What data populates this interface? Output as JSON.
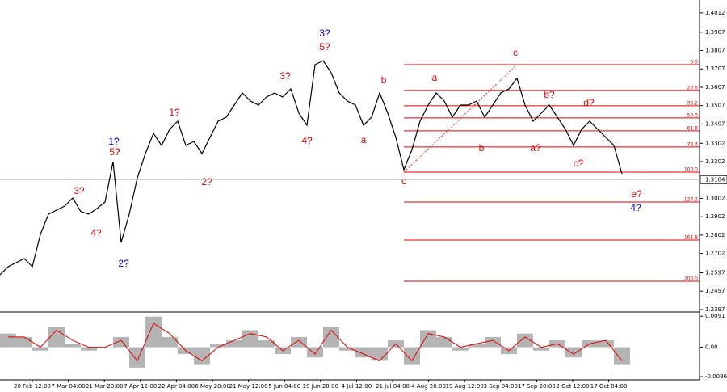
{
  "chart_data": {
    "type": "line",
    "price": {
      "color": "#000000",
      "values": [
        1.2586,
        1.263,
        1.2652,
        1.2674,
        1.263,
        1.2806,
        1.2916,
        1.2938,
        1.296,
        1.3004,
        1.293,
        1.2916,
        1.2947,
        1.2982,
        1.3202,
        1.2762,
        1.2916,
        1.3114,
        1.3246,
        1.3356,
        1.329,
        1.3378,
        1.3422,
        1.329,
        1.3312,
        1.3246,
        1.3334,
        1.3422,
        1.3444,
        1.351,
        1.3576,
        1.3532,
        1.351,
        1.3554,
        1.3576,
        1.3554,
        1.3598,
        1.3466,
        1.34,
        1.373,
        1.3752,
        1.3686,
        1.3576,
        1.3532,
        1.351,
        1.34,
        1.3444,
        1.3576,
        1.3466,
        1.3334,
        1.3158,
        1.3268,
        1.3422,
        1.351,
        1.3576,
        1.3532,
        1.3444,
        1.351,
        1.351,
        1.3532,
        1.3444,
        1.351,
        1.3576,
        1.3598,
        1.3656,
        1.351,
        1.3422,
        1.3466,
        1.351,
        1.3444,
        1.3378,
        1.329,
        1.3378,
        1.3422,
        1.3378,
        1.3334,
        1.329,
        1.3136
      ]
    },
    "ylim": [
      1.2388,
      1.4082
    ],
    "yticks": [
      1.4012,
      1.3907,
      1.3807,
      1.3707,
      1.3607,
      1.3507,
      1.3407,
      1.3302,
      1.3202,
      1.3002,
      1.2902,
      1.2802,
      1.2702,
      1.2597,
      1.2497,
      1.2397
    ],
    "current_price": 1.3104,
    "categories": [
      "20 Feb 12:00",
      "7 Mar 04:00",
      "21 Mar 20:00",
      "7 Apr 12:00",
      "22 Apr 04:00",
      "6 May 20:00",
      "21 May 12:00",
      "5 Jun 04:00",
      "19 Jun 20:00",
      "4 Jul 12:00",
      "21 Jul 04:00",
      "4 Aug 20:00",
      "19 Aug 12:00",
      "3 Sep 04:00",
      "17 Sep 20:00",
      "2 Oct 12:00",
      "17 Oct 04:00"
    ],
    "fib_color": "#e00000",
    "fib_levels": [
      {
        "label": "0.0",
        "price": 1.373
      },
      {
        "label": "23.6",
        "price": 1.359
      },
      {
        "label": "38.2",
        "price": 1.3506
      },
      {
        "label": "50.0",
        "price": 1.344
      },
      {
        "label": "61.8",
        "price": 1.337
      },
      {
        "label": "76.4",
        "price": 1.3282
      },
      {
        "label": "100.0",
        "price": 1.3145
      },
      {
        "label": "127.2",
        "price": 1.2982
      },
      {
        "label": "161.8",
        "price": 1.2775
      },
      {
        "label": "200.0",
        "price": 1.2551
      }
    ],
    "waves": [
      {
        "text": "3?",
        "color": "#e00000"
      },
      {
        "text": "4?",
        "color": "#e00000"
      },
      {
        "text": "1?",
        "color": "#0000e0"
      },
      {
        "text": "5?",
        "color": "#e00000"
      },
      {
        "text": "2?",
        "color": "#0000e0"
      },
      {
        "text": "1?",
        "color": "#e00000"
      },
      {
        "text": "2?",
        "color": "#e00000"
      },
      {
        "text": "3?",
        "color": "#e00000"
      },
      {
        "text": "4?",
        "color": "#e00000"
      },
      {
        "text": "3?",
        "color": "#0000e0"
      },
      {
        "text": "5?",
        "color": "#e00000"
      },
      {
        "text": "b",
        "color": "#e00000"
      },
      {
        "text": "a",
        "color": "#e00000"
      },
      {
        "text": "c",
        "color": "#e00000"
      },
      {
        "text": "a",
        "color": "#e00000"
      },
      {
        "text": "b",
        "color": "#e00000"
      },
      {
        "text": "c",
        "color": "#e00000"
      },
      {
        "text": "b?",
        "color": "#e00000"
      },
      {
        "text": "a?",
        "color": "#e00000"
      },
      {
        "text": "d?",
        "color": "#e00000"
      },
      {
        "text": "c?",
        "color": "#e00000"
      },
      {
        "text": "e?",
        "color": "#e00000"
      },
      {
        "text": "4?",
        "color": "#0000e0"
      }
    ],
    "oscillator": {
      "color": "#b4b4b4",
      "signal_color": "#e00000",
      "ylim": [
        -0.0096,
        0.0101
      ],
      "yticks": [
        0.0091,
        {
          "value": 0,
          "label": "0.00"
        },
        -0.00867
      ],
      "values": [
        0.004,
        0.003,
        -0.001,
        0.006,
        0.001,
        -0.001,
        0.0,
        0.003,
        -0.006,
        0.009,
        0.003,
        -0.002,
        -0.005,
        0.001,
        0.002,
        0.005,
        0.002,
        -0.002,
        0.003,
        -0.003,
        0.006,
        -0.001,
        -0.003,
        -0.004,
        0.002,
        -0.005,
        0.005,
        0.003,
        -0.001,
        0.001,
        0.003,
        -0.002,
        0.004,
        -0.001,
        0.002,
        -0.003,
        0.002,
        0.002,
        -0.005
      ],
      "signal": [
        0.003,
        0.003,
        0.0,
        0.005,
        0.002,
        0.0,
        0.0,
        0.002,
        -0.004,
        0.007,
        0.004,
        -0.001,
        -0.004,
        0.0,
        0.002,
        0.004,
        0.003,
        -0.001,
        0.002,
        -0.002,
        0.005,
        0.0,
        -0.002,
        -0.004,
        0.001,
        -0.004,
        0.004,
        0.003,
        0.0,
        0.001,
        0.002,
        -0.001,
        0.003,
        0.0,
        0.001,
        -0.002,
        0.001,
        0.002,
        -0.004
      ]
    }
  }
}
